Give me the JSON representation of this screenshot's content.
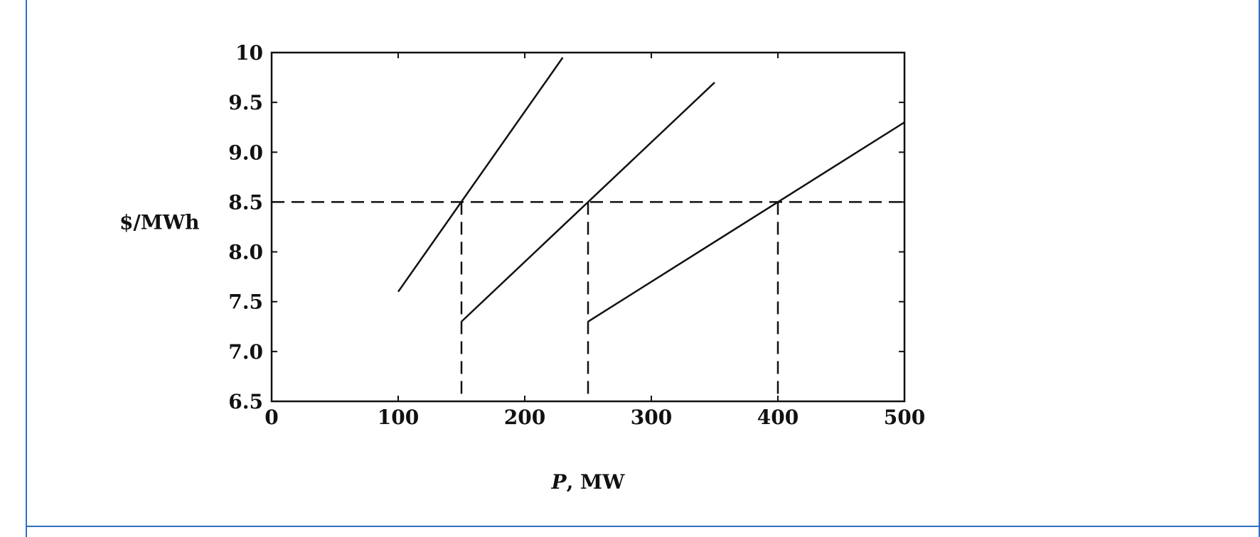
{
  "chart_data": {
    "type": "line",
    "title": "",
    "xlabel_var": "P",
    "xlabel_unit": ", MW",
    "ylabel": "$/MWh",
    "xlim": [
      0,
      500
    ],
    "ylim": [
      6.5,
      10
    ],
    "x_ticks": [
      0,
      100,
      200,
      300,
      400,
      500
    ],
    "y_ticks": [
      6.5,
      7.0,
      7.5,
      8.0,
      8.5,
      9.0,
      9.5,
      10
    ],
    "x_tick_labels": [
      "0",
      "100",
      "200",
      "300",
      "400",
      "500"
    ],
    "y_tick_labels": [
      "6.5",
      "7.0",
      "7.5",
      "8.0",
      "8.5",
      "9.0",
      "9.5",
      "10"
    ],
    "grid": false,
    "series": [
      {
        "x": [
          100,
          230
        ],
        "y": [
          7.6,
          9.95
        ]
      },
      {
        "x": [
          150,
          350
        ],
        "y": [
          7.3,
          9.7
        ]
      },
      {
        "x": [
          250,
          500
        ],
        "y": [
          7.3,
          9.3
        ]
      }
    ],
    "reference_lines": {
      "horizontal": {
        "y": 8.5,
        "x_from": 0,
        "x_to": 500,
        "style": "dashed"
      },
      "verticals": [
        {
          "x": 150,
          "y_from": 6.5,
          "y_to": 8.5,
          "style": "dashed"
        },
        {
          "x": 250,
          "y_from": 6.5,
          "y_to": 8.5,
          "style": "dashed"
        },
        {
          "x": 400,
          "y_from": 6.5,
          "y_to": 8.5,
          "style": "dashed"
        }
      ]
    },
    "colors": {
      "line": "#111111",
      "frame_border": "#2f6fc0"
    }
  }
}
